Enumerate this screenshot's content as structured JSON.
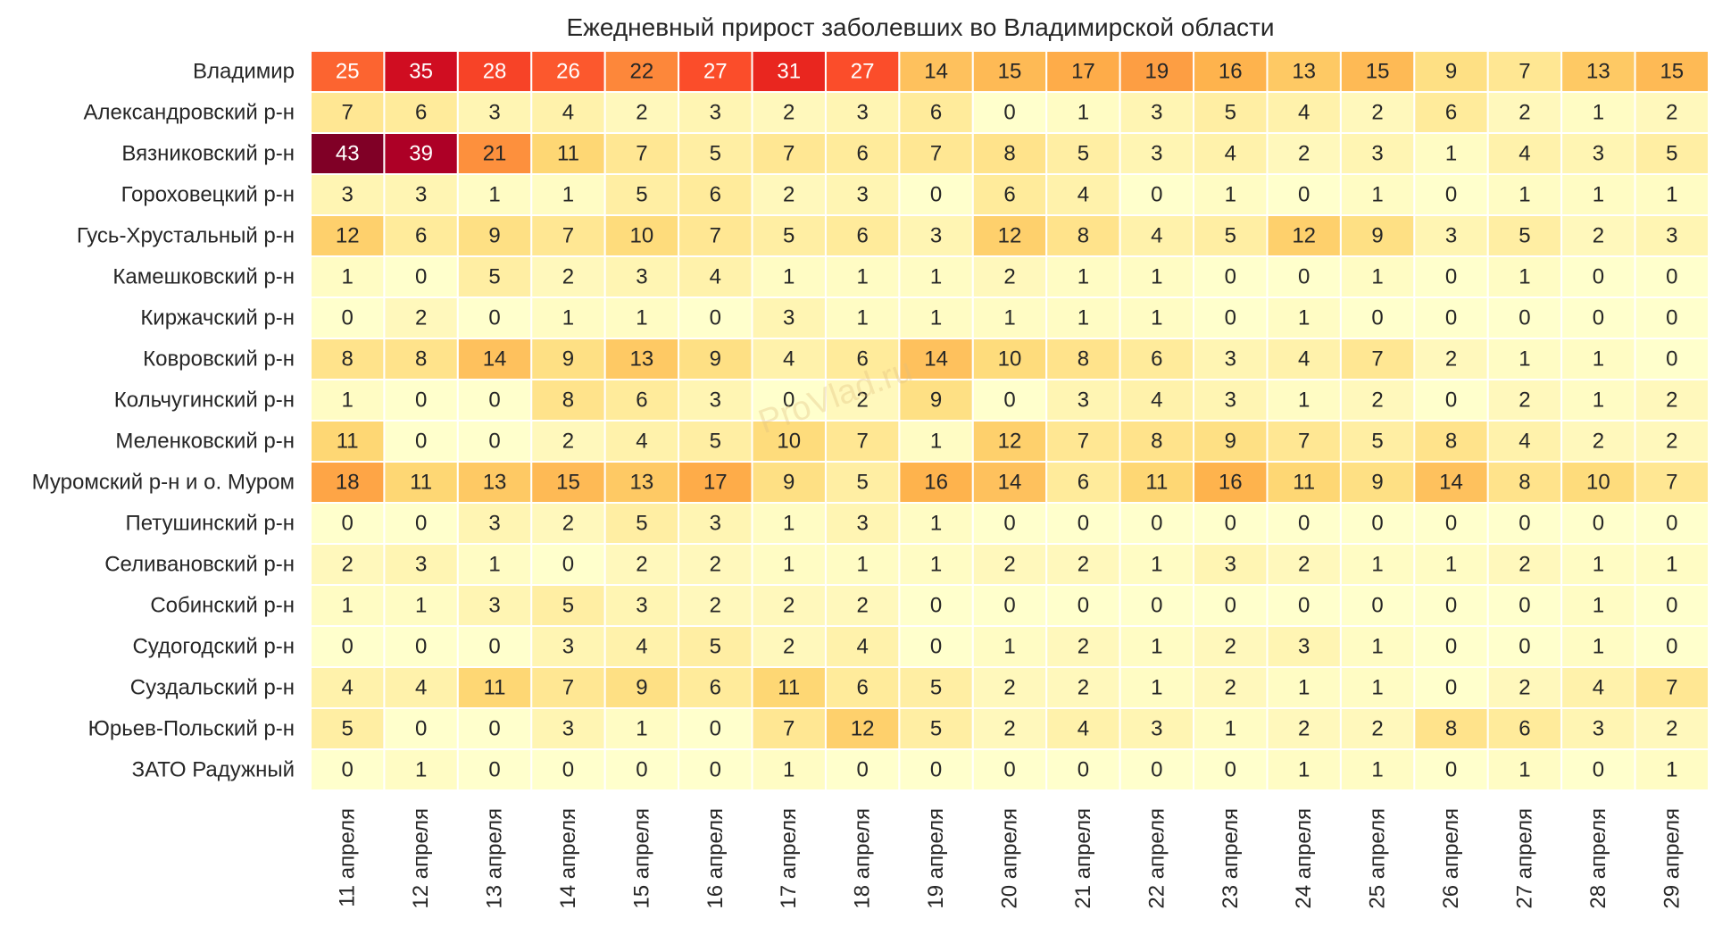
{
  "chart_data": {
    "type": "heatmap",
    "title": "Ежедневный прирост заболевших во Владимирской области",
    "watermark": "ProVlad.ru",
    "columns": [
      "11 апреля",
      "12 апреля",
      "13 апреля",
      "14 апреля",
      "15 апреля",
      "16 апреля",
      "17 апреля",
      "18 апреля",
      "19 апреля",
      "20 апреля",
      "21 апреля",
      "22 апреля",
      "23 апреля",
      "24 апреля",
      "25 апреля",
      "26 апреля",
      "27 апреля",
      "28 апреля",
      "29 апреля"
    ],
    "rows": [
      "Владимир",
      "Александровский р-н",
      "Вязниковский р-н",
      "Гороховецкий р-н",
      "Гусь-Хрустальный р-н",
      "Камешковский р-н",
      "Киржачский р-н",
      "Ковровский р-н",
      "Кольчугинский р-н",
      "Меленковский р-н",
      "Муромский р-н и о. Муром",
      "Петушинский р-н",
      "Селивановский р-н",
      "Собинский р-н",
      "Судогодский р-н",
      "Суздальский р-н",
      "Юрьев-Польский р-н",
      "ЗАТО Радужный"
    ],
    "values": [
      [
        25,
        35,
        28,
        26,
        22,
        27,
        31,
        27,
        14,
        15,
        17,
        19,
        16,
        13,
        15,
        9,
        7,
        13,
        15
      ],
      [
        7,
        6,
        3,
        4,
        2,
        3,
        2,
        3,
        6,
        0,
        1,
        3,
        5,
        4,
        2,
        6,
        2,
        1,
        2
      ],
      [
        43,
        39,
        21,
        11,
        7,
        5,
        7,
        6,
        7,
        8,
        5,
        3,
        4,
        2,
        3,
        1,
        4,
        3,
        5
      ],
      [
        3,
        3,
        1,
        1,
        5,
        6,
        2,
        3,
        0,
        6,
        4,
        0,
        1,
        0,
        1,
        0,
        1,
        1,
        1
      ],
      [
        12,
        6,
        9,
        7,
        10,
        7,
        5,
        6,
        3,
        12,
        8,
        4,
        5,
        12,
        9,
        3,
        5,
        2,
        3
      ],
      [
        1,
        0,
        5,
        2,
        3,
        4,
        1,
        1,
        1,
        2,
        1,
        1,
        0,
        0,
        1,
        0,
        1,
        0,
        0
      ],
      [
        0,
        2,
        0,
        1,
        1,
        0,
        3,
        1,
        1,
        1,
        1,
        1,
        0,
        1,
        0,
        0,
        0,
        0,
        0
      ],
      [
        8,
        8,
        14,
        9,
        13,
        9,
        4,
        6,
        14,
        10,
        8,
        6,
        3,
        4,
        7,
        2,
        1,
        1,
        0
      ],
      [
        1,
        0,
        0,
        8,
        6,
        3,
        0,
        2,
        9,
        0,
        3,
        4,
        3,
        1,
        2,
        0,
        2,
        1,
        2
      ],
      [
        11,
        0,
        0,
        2,
        4,
        5,
        10,
        7,
        1,
        12,
        7,
        8,
        9,
        7,
        5,
        8,
        4,
        2,
        2
      ],
      [
        18,
        11,
        13,
        15,
        13,
        17,
        9,
        5,
        16,
        14,
        6,
        11,
        16,
        11,
        9,
        14,
        8,
        10,
        7
      ],
      [
        0,
        0,
        3,
        2,
        5,
        3,
        1,
        3,
        1,
        0,
        0,
        0,
        0,
        0,
        0,
        0,
        0,
        0,
        0
      ],
      [
        2,
        3,
        1,
        0,
        2,
        2,
        1,
        1,
        1,
        2,
        2,
        1,
        3,
        2,
        1,
        1,
        2,
        1,
        1
      ],
      [
        1,
        1,
        3,
        5,
        3,
        2,
        2,
        2,
        0,
        0,
        0,
        0,
        0,
        0,
        0,
        0,
        0,
        1,
        0
      ],
      [
        0,
        0,
        0,
        3,
        4,
        5,
        2,
        4,
        0,
        1,
        2,
        1,
        2,
        3,
        1,
        0,
        0,
        1,
        0
      ],
      [
        4,
        4,
        11,
        7,
        9,
        6,
        11,
        6,
        5,
        2,
        2,
        1,
        2,
        1,
        1,
        0,
        2,
        4,
        7
      ],
      [
        5,
        0,
        0,
        3,
        1,
        0,
        7,
        12,
        5,
        2,
        4,
        3,
        1,
        2,
        2,
        8,
        6,
        3,
        2
      ],
      [
        0,
        1,
        0,
        0,
        0,
        0,
        1,
        0,
        0,
        0,
        0,
        0,
        0,
        1,
        1,
        0,
        1,
        0,
        1
      ]
    ],
    "colormap": "YlOrRd",
    "vmin": 0,
    "vmax": 43,
    "annotated": true,
    "legend": "none",
    "grid": false
  }
}
